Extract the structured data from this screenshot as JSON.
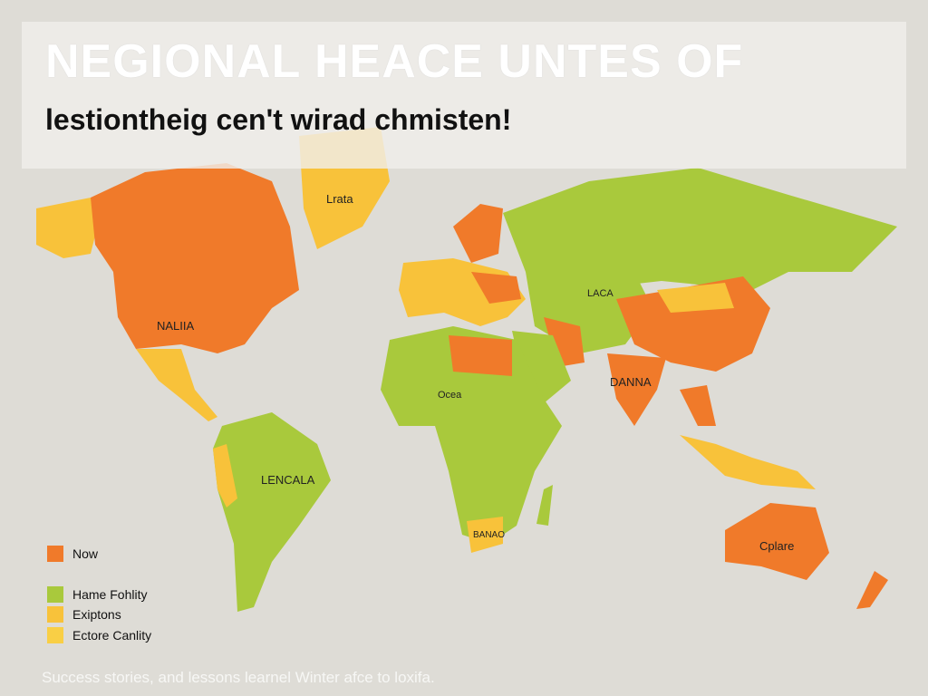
{
  "title": "NEGIONAL HEACE UNTES OF",
  "subtitle": "lestiontheig cen't wirad chmisten!",
  "colors": {
    "background": "#dedcd6",
    "orange": "#f07a2a",
    "green": "#a9c93c",
    "yellow": "#f8c23a",
    "light_yellow": "#f9cf45"
  },
  "map_labels": {
    "greenland": "Lrata",
    "north_america": "NALIIA",
    "south_america": "LENCALA",
    "central_asia": "LACA",
    "india": "DANNA",
    "australia": "Cplare",
    "west_africa": "Ocea",
    "southern_africa": "BANAO"
  },
  "legend": [
    {
      "label": "Now",
      "color": "#f07a2a"
    },
    {
      "label": "Hame Fohlity",
      "color": "#a9c93c"
    },
    {
      "label": "Exiptons",
      "color": "#f8c23a"
    },
    {
      "label": "Ectore Canlity",
      "color": "#f9cf45"
    }
  ],
  "footer": "Success stories, and lessons learnel Winter afce to loxifa."
}
